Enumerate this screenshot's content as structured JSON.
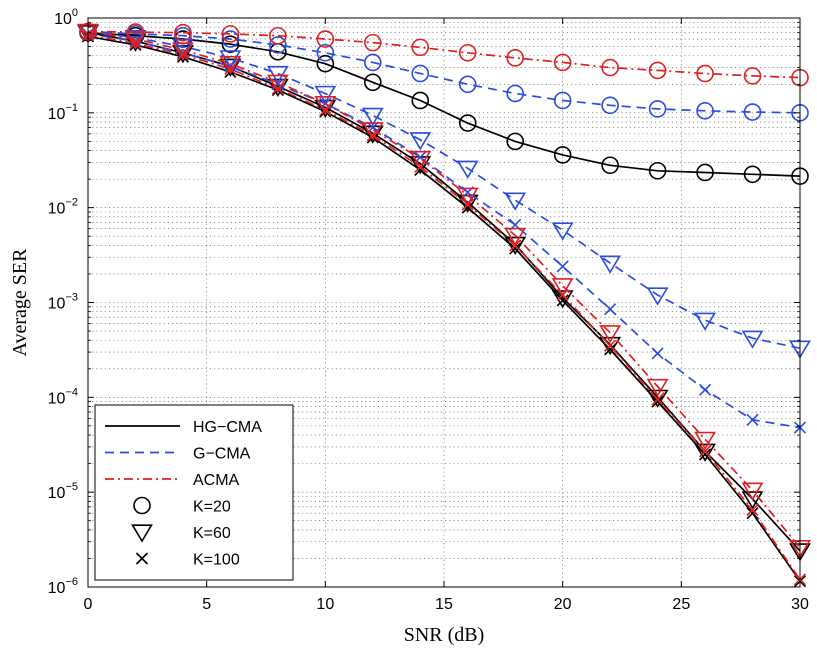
{
  "chart_data": {
    "type": "line",
    "title": "",
    "xlabel": "SNR (dB)",
    "ylabel": "Average SER",
    "xlim": [
      0,
      30
    ],
    "ylim_exponents": [
      -6,
      0
    ],
    "yscale": "log",
    "grid": true,
    "x_ticks": [
      "0",
      "5",
      "10",
      "15",
      "20",
      "25",
      "30"
    ],
    "y_ticks": [
      {
        "base": "10",
        "exp": "0"
      },
      {
        "base": "10",
        "exp": "−1"
      },
      {
        "base": "10",
        "exp": "−2"
      },
      {
        "base": "10",
        "exp": "−3"
      },
      {
        "base": "10",
        "exp": "−4"
      },
      {
        "base": "10",
        "exp": "−5"
      },
      {
        "base": "10",
        "exp": "−6"
      }
    ],
    "legend": {
      "placement": "bottom-left",
      "entries": [
        {
          "label": "HG−CMA",
          "kind": "line",
          "color": "#000000",
          "dash": "solid"
        },
        {
          "label": "G−CMA",
          "kind": "line",
          "color": "#2a4cdf",
          "dash": "dashed"
        },
        {
          "label": "ACMA",
          "kind": "line",
          "color": "#e02020",
          "dash": "dashdot"
        },
        {
          "label": "K=20",
          "kind": "marker",
          "marker": "circle"
        },
        {
          "label": "K=60",
          "kind": "marker",
          "marker": "triangle"
        },
        {
          "label": "K=100",
          "kind": "marker",
          "marker": "x"
        }
      ]
    },
    "series": [
      {
        "name": "HG−CMA K=20",
        "algo": "HG−CMA",
        "color": "#000000",
        "dash": "solid",
        "marker": "circle",
        "x": [
          0,
          2,
          4,
          6,
          8,
          10,
          12,
          14,
          16,
          18,
          20,
          22,
          24,
          26,
          28,
          30
        ],
        "y": [
          0.7,
          0.65,
          0.6,
          0.53,
          0.44,
          0.33,
          0.21,
          0.135,
          0.078,
          0.05,
          0.036,
          0.028,
          0.0245,
          0.0235,
          0.0225,
          0.0215
        ]
      },
      {
        "name": "HG−CMA K=60",
        "algo": "HG−CMA",
        "color": "#000000",
        "dash": "solid",
        "marker": "triangle",
        "x": [
          0,
          2,
          4,
          6,
          8,
          10,
          12,
          14,
          16,
          18,
          20,
          22,
          24,
          26,
          28,
          30
        ],
        "y": [
          0.7,
          0.57,
          0.43,
          0.31,
          0.19,
          0.114,
          0.061,
          0.029,
          0.0114,
          0.0041,
          0.00112,
          0.00036,
          0.0001,
          2.7e-05,
          8.5e-06,
          2.4e-06
        ]
      },
      {
        "name": "HG−CMA K=100",
        "algo": "HG−CMA",
        "color": "#000000",
        "dash": "solid",
        "marker": "x",
        "x": [
          0,
          2,
          4,
          6,
          8,
          10,
          12,
          14,
          16,
          18,
          20,
          22,
          24,
          26,
          28,
          30
        ],
        "y": [
          0.64,
          0.52,
          0.39,
          0.27,
          0.174,
          0.103,
          0.055,
          0.025,
          0.01,
          0.0037,
          0.00105,
          0.00032,
          9e-05,
          2.5e-05,
          6e-06,
          1.15e-06
        ]
      },
      {
        "name": "G−CMA K=20",
        "algo": "G−CMA",
        "color": "#2a4cdf",
        "dash": "dashed",
        "marker": "circle",
        "x": [
          0,
          2,
          4,
          6,
          8,
          10,
          12,
          14,
          16,
          18,
          20,
          22,
          24,
          26,
          28,
          30
        ],
        "y": [
          0.72,
          0.68,
          0.65,
          0.6,
          0.52,
          0.43,
          0.34,
          0.26,
          0.2,
          0.16,
          0.135,
          0.12,
          0.11,
          0.105,
          0.102,
          0.1
        ]
      },
      {
        "name": "G−CMA K=60",
        "algo": "G−CMA",
        "color": "#2a4cdf",
        "dash": "dashed",
        "marker": "triangle",
        "x": [
          0,
          2,
          4,
          6,
          8,
          10,
          12,
          14,
          16,
          18,
          20,
          22,
          24,
          26,
          28,
          30
        ],
        "y": [
          0.72,
          0.62,
          0.5,
          0.38,
          0.26,
          0.16,
          0.094,
          0.052,
          0.026,
          0.012,
          0.0058,
          0.0026,
          0.0012,
          0.00065,
          0.00042,
          0.00033
        ]
      },
      {
        "name": "G−CMA K=100",
        "algo": "G−CMA",
        "color": "#2a4cdf",
        "dash": "dashed",
        "marker": "x",
        "x": [
          0,
          2,
          4,
          6,
          8,
          10,
          12,
          14,
          16,
          18,
          20,
          22,
          24,
          26,
          28,
          30
        ],
        "y": [
          0.68,
          0.57,
          0.43,
          0.31,
          0.2,
          0.125,
          0.07,
          0.034,
          0.0145,
          0.0066,
          0.0024,
          0.00085,
          0.00029,
          0.00012,
          5.8e-05,
          4.8e-05
        ]
      },
      {
        "name": "ACMA K=20",
        "algo": "ACMA",
        "color": "#e02020",
        "dash": "dashdot",
        "marker": "circle",
        "x": [
          0,
          2,
          4,
          6,
          8,
          10,
          12,
          14,
          16,
          18,
          20,
          22,
          24,
          26,
          28,
          30
        ],
        "y": [
          0.72,
          0.71,
          0.7,
          0.68,
          0.65,
          0.6,
          0.55,
          0.49,
          0.43,
          0.38,
          0.34,
          0.3,
          0.28,
          0.26,
          0.245,
          0.235
        ]
      },
      {
        "name": "ACMA K=60",
        "algo": "ACMA",
        "color": "#e02020",
        "dash": "dashdot",
        "marker": "triangle",
        "x": [
          0,
          2,
          4,
          6,
          8,
          10,
          12,
          14,
          16,
          18,
          20,
          22,
          24,
          26,
          28,
          30
        ],
        "y": [
          0.72,
          0.6,
          0.46,
          0.33,
          0.21,
          0.125,
          0.066,
          0.033,
          0.0135,
          0.0051,
          0.0015,
          0.00048,
          0.00013,
          3.6e-05,
          1.05e-05,
          2.6e-06
        ]
      },
      {
        "name": "ACMA K=100",
        "algo": "ACMA",
        "color": "#e02020",
        "dash": "dashdot",
        "marker": "x",
        "x": [
          0,
          2,
          4,
          6,
          8,
          10,
          12,
          14,
          16,
          18,
          20,
          22,
          24,
          26,
          28,
          30
        ],
        "y": [
          0.66,
          0.54,
          0.41,
          0.29,
          0.18,
          0.107,
          0.058,
          0.027,
          0.0108,
          0.004,
          0.0012,
          0.00035,
          9.5e-05,
          2.7e-05,
          6.5e-06,
          1.2e-06
        ]
      }
    ]
  }
}
